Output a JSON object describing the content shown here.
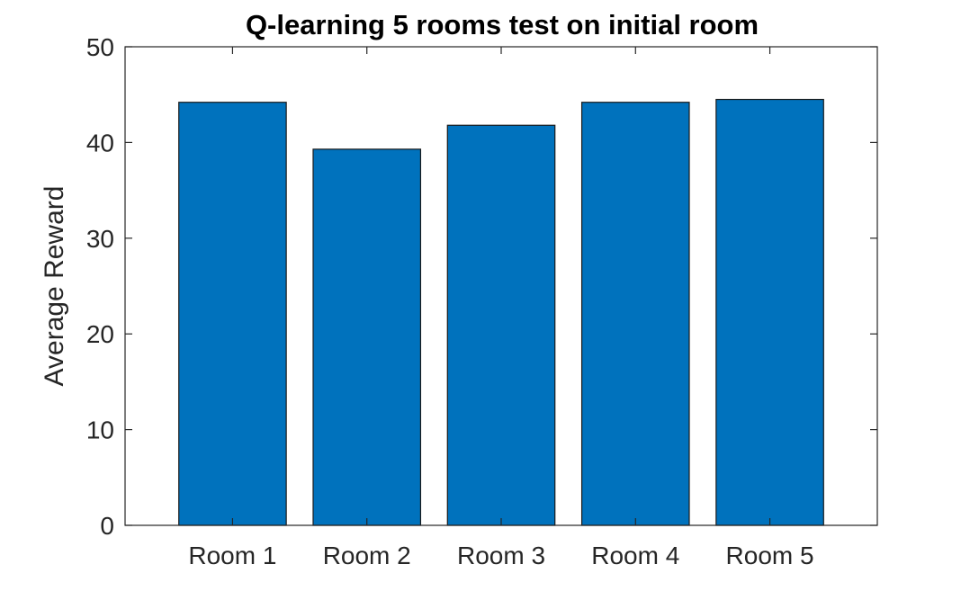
{
  "chart_data": {
    "type": "bar",
    "title": "Q-learning 5 rooms test on initial room",
    "xlabel": "",
    "ylabel": "Average Reward",
    "categories": [
      "Room 1",
      "Room 2",
      "Room 3",
      "Room 4",
      "Room 5"
    ],
    "values": [
      44.2,
      39.3,
      41.8,
      44.2,
      44.5
    ],
    "ylim": [
      0,
      50
    ],
    "yticks": [
      0,
      10,
      20,
      30,
      40,
      50
    ],
    "grid": false,
    "legend": "none",
    "colors": {
      "bar": "#0072BD",
      "bar_edge": "#1a1a1a",
      "axis": "#262626"
    }
  }
}
